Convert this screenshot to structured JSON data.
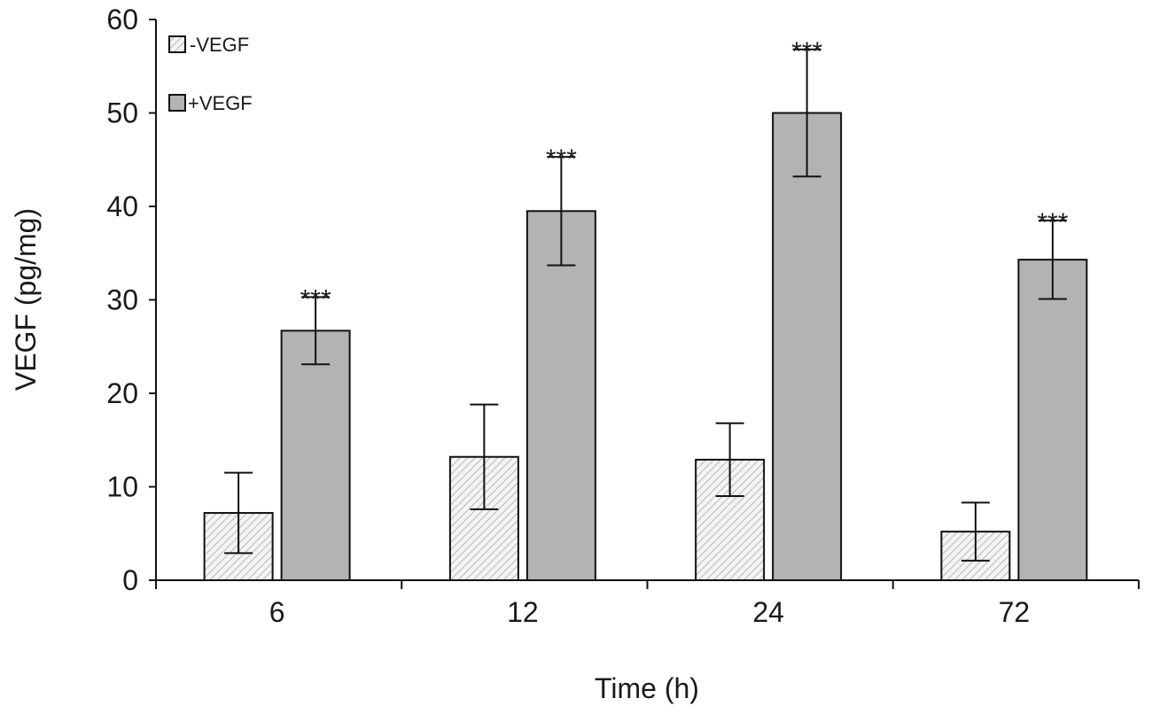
{
  "chart_data": {
    "type": "bar",
    "title": "",
    "xlabel": "Time (h)",
    "ylabel": "VEGF (pg/mg)",
    "ylim": [
      0,
      60
    ],
    "yticks": [
      0,
      10,
      20,
      30,
      40,
      50,
      60
    ],
    "categories": [
      "6",
      "12",
      "24",
      "72"
    ],
    "grid": false,
    "legend_position": "top-left",
    "series": [
      {
        "name": "-VEGF",
        "fill": "hatched",
        "color": "#d9d9d9",
        "values": [
          7.2,
          13.2,
          12.9,
          5.2
        ],
        "errors": [
          4.3,
          5.6,
          3.9,
          3.1
        ]
      },
      {
        "name": "+VEGF",
        "fill": "solid",
        "color": "#b3b3b3",
        "values": [
          26.7,
          39.5,
          50.0,
          34.3
        ],
        "errors": [
          3.6,
          5.8,
          6.8,
          4.2
        ]
      }
    ],
    "annotations": [
      {
        "category": "6",
        "series": "+VEGF",
        "text": "***"
      },
      {
        "category": "12",
        "series": "+VEGF",
        "text": "***"
      },
      {
        "category": "24",
        "series": "+VEGF",
        "text": "***"
      },
      {
        "category": "72",
        "series": "+VEGF",
        "text": "***"
      }
    ]
  }
}
